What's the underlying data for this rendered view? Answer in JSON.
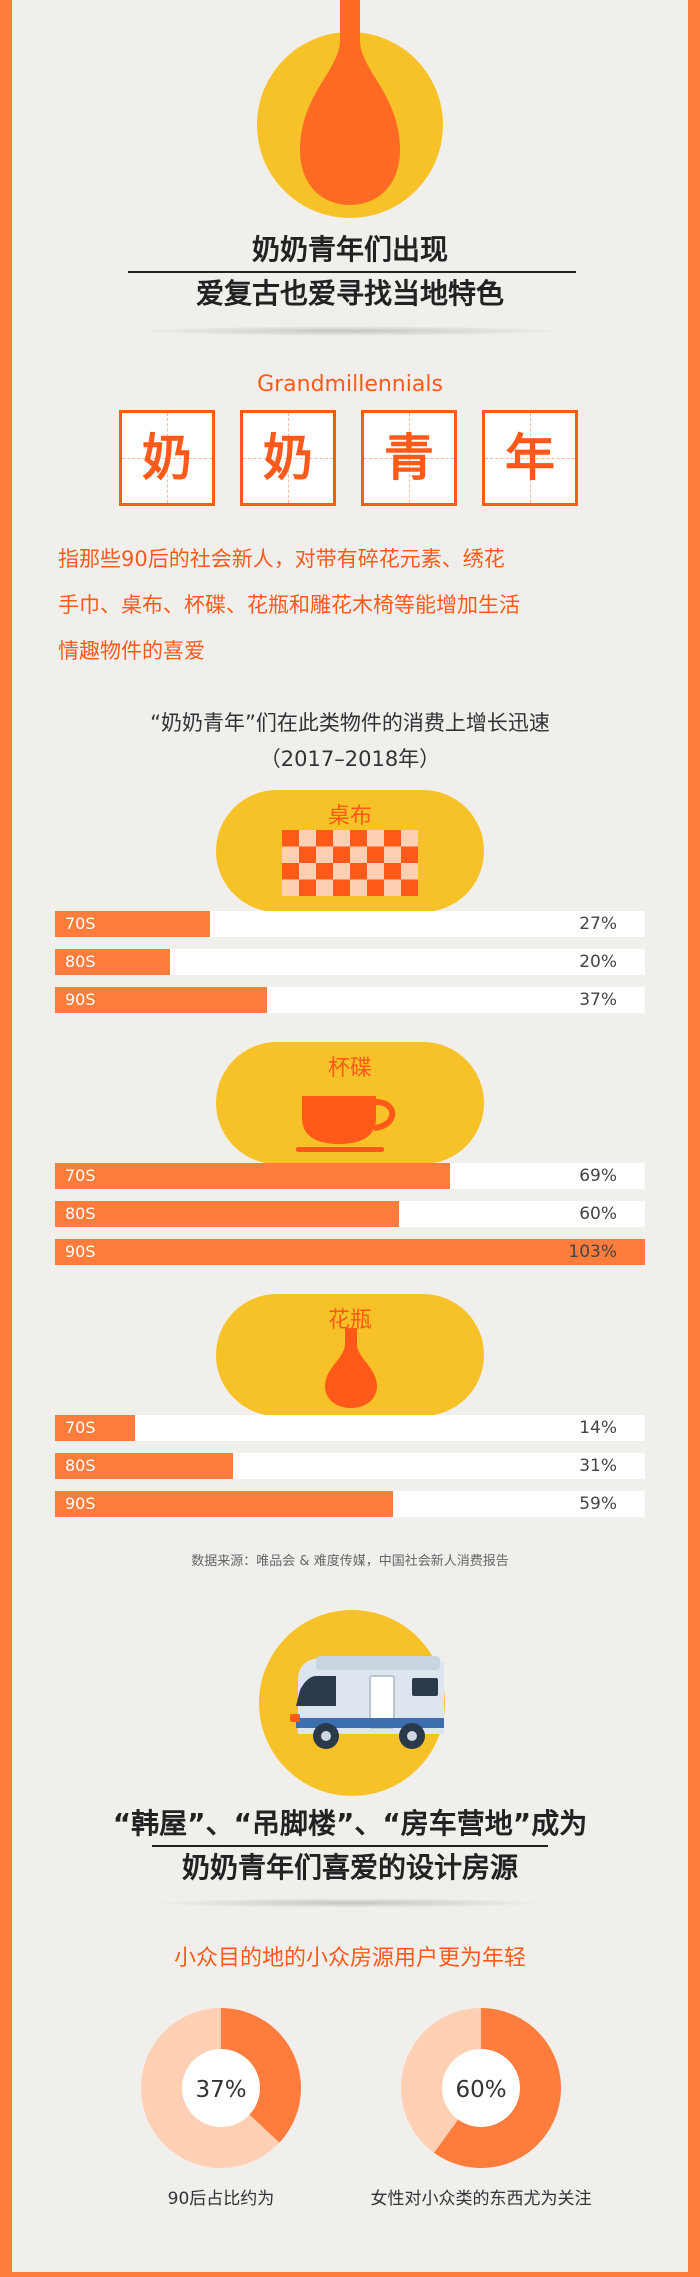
{
  "header": {
    "title_line1": "奶奶青年们出现",
    "title_line2": "爱复古也爱寻找当地特色"
  },
  "intro": {
    "english_term": "Grandmillennials",
    "chars": [
      "奶",
      "奶",
      "青",
      "年"
    ],
    "description_line1": "指那些90后的社会新人，对带有碎花元素、绣花",
    "description_line2": "手巾、桌布、杯碟、花瓶和雕花木椅等能增加生活",
    "description_line3": "情趣物件的喜爱"
  },
  "chart_section": {
    "heading_line1": "“奶奶青年”们在此类物件的消费上增长迅速",
    "heading_line2": "（2017–2018年）",
    "source": "数据来源：唯品会 & 难度传媒，中国社会新人消费报告"
  },
  "chart_data": [
    {
      "type": "bar",
      "title": "桌布",
      "categories": [
        "70S",
        "80S",
        "90S"
      ],
      "values": [
        27,
        20,
        37
      ],
      "value_labels": [
        "27%",
        "20%",
        "37%"
      ],
      "xlim": [
        0,
        103
      ]
    },
    {
      "type": "bar",
      "title": "杯碟",
      "categories": [
        "70S",
        "80S",
        "90S"
      ],
      "values": [
        69,
        60,
        103
      ],
      "value_labels": [
        "69%",
        "60%",
        "103%"
      ],
      "xlim": [
        0,
        103
      ]
    },
    {
      "type": "bar",
      "title": "花瓶",
      "categories": [
        "70S",
        "80S",
        "90S"
      ],
      "values": [
        14,
        31,
        59
      ],
      "value_labels": [
        "14%",
        "31%",
        "59%"
      ],
      "xlim": [
        0,
        103
      ]
    },
    {
      "type": "pie",
      "values": [
        37,
        63
      ],
      "center_label": "37%",
      "caption": "90后占比约为"
    },
    {
      "type": "pie",
      "values": [
        60,
        40
      ],
      "center_label": "60%",
      "caption": "女性对小众类的东西尤为关注"
    }
  ],
  "section2": {
    "title_line1": "“韩屋”、“吊脚楼”、“房车营地”成为",
    "title_line2": "奶奶青年们喜爱的设计房源",
    "subtitle": "小众目的地的小众房源用户更为年轻"
  },
  "colors": {
    "orange": "#ff5a1a",
    "bar_orange": "#ff7d3c",
    "yellow": "#f7c227",
    "light_peach": "#ffd0b4",
    "background": "#f1efeb"
  },
  "icons": [
    "vase-icon",
    "tablecloth-icon",
    "teacup-icon",
    "vase-icon",
    "camper-van-icon"
  ]
}
